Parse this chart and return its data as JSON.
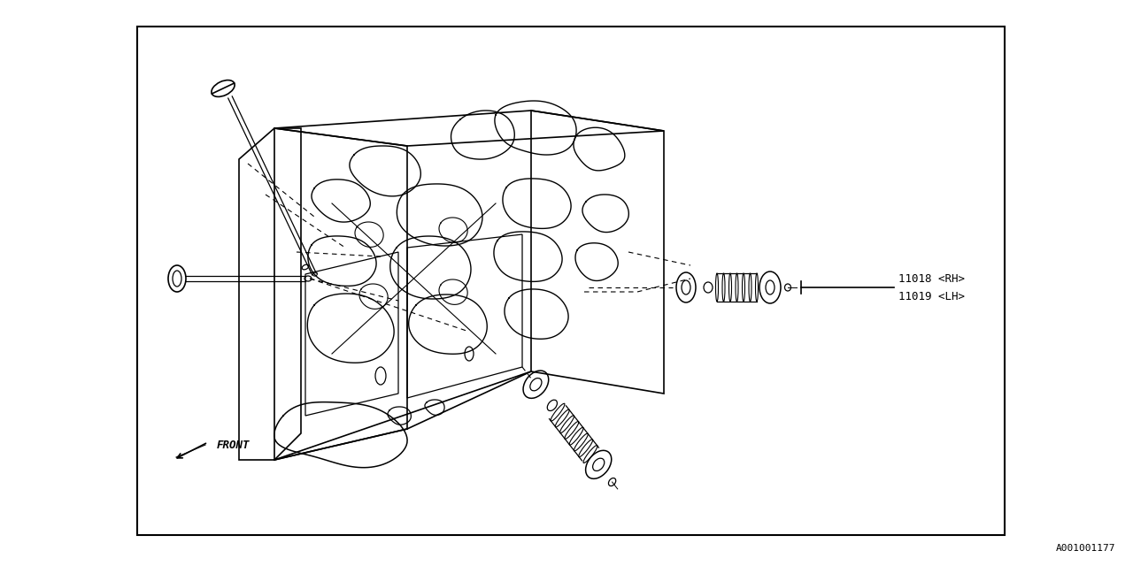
{
  "bg_color": "#ffffff",
  "border_color": "#000000",
  "line_color": "#000000",
  "part_label_1": "11018 <RH>",
  "part_label_2": "11019 <LH>",
  "front_label": "FRONT",
  "diagram_id": "A001001177",
  "label_fontsize": 9,
  "id_fontsize": 8,
  "front_fontsize": 9
}
